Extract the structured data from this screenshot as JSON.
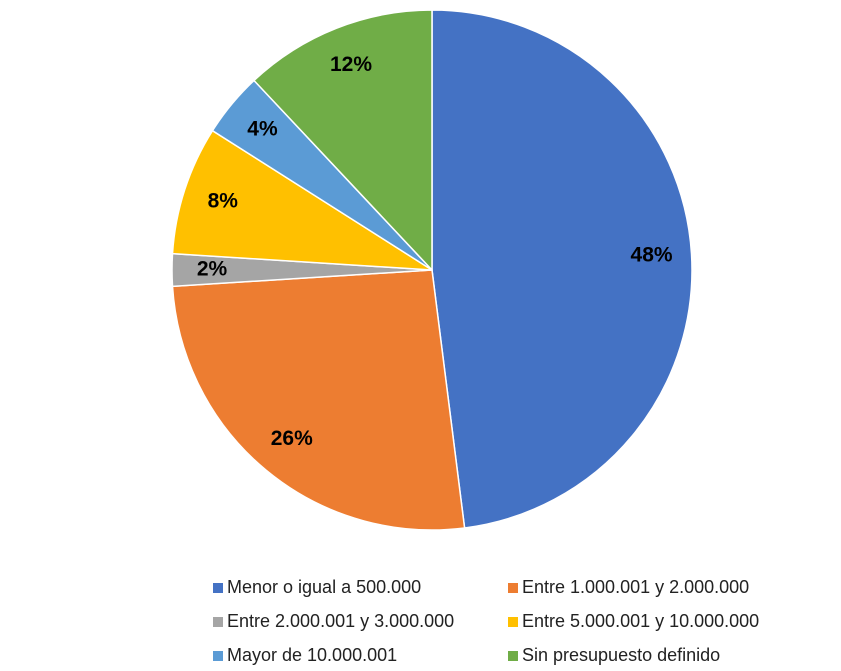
{
  "chart_data": {
    "type": "pie",
    "categories": [
      "Menor o igual a 500.000",
      "Entre 1.000.001 y 2.000.000",
      "Entre 2.000.001 y 3.000.000",
      "Entre 5.000.001 y 10.000.000",
      "Mayor de 10.000.001",
      "Sin presupuesto definido"
    ],
    "values": [
      48,
      26,
      2,
      8,
      4,
      12
    ],
    "value_labels": [
      "48%",
      "26%",
      "2%",
      "8%",
      "4%",
      "12%"
    ],
    "colors": [
      "#4472c4",
      "#ed7d31",
      "#a5a5a5",
      "#ffc000",
      "#5b9bd5",
      "#70ad47"
    ]
  }
}
